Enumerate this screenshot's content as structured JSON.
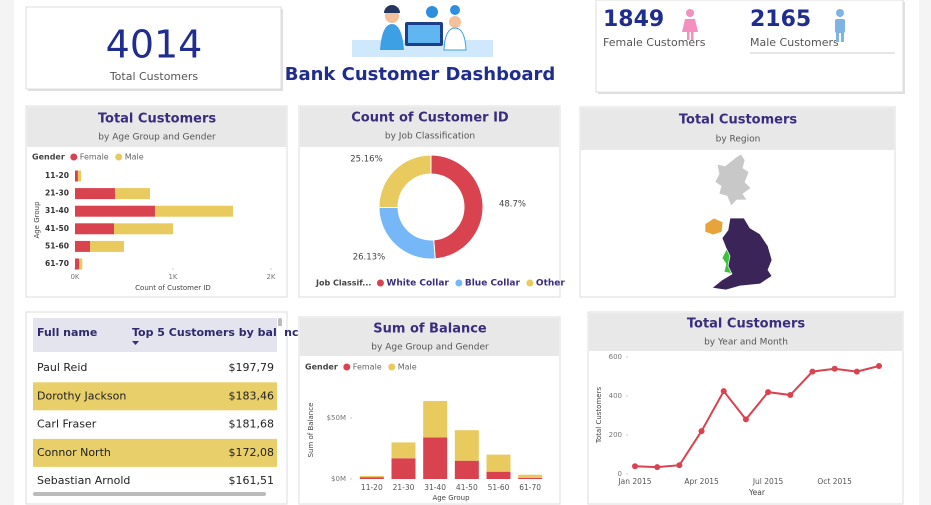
{
  "header": {
    "title": "Bank Customer Dashboard"
  },
  "kpis": {
    "total": {
      "value": 4014,
      "label": "Total Customers"
    },
    "female": {
      "value": 1849,
      "label": "Female Customers"
    },
    "male": {
      "value": 2165,
      "label": "Male Customers"
    }
  },
  "chart_data": [
    {
      "type": "bar",
      "orientation": "horizontal",
      "stacked": true,
      "title": "Total Customers",
      "subtitle": "by Age Group and Gender",
      "legend_title": "Gender",
      "categories": [
        "11-20",
        "21-30",
        "31-40",
        "41-50",
        "51-60",
        "61-70"
      ],
      "series": [
        {
          "name": "Female",
          "color": "#d9434f",
          "values": [
            30,
            408,
            816,
            398,
            153,
            44
          ]
        },
        {
          "name": "Male",
          "color": "#e8ca5f",
          "values": [
            33,
            357,
            796,
            602,
            347,
            30
          ]
        }
      ],
      "xlim": [
        0,
        2000
      ],
      "xticks": [
        {
          "value": 0,
          "label": "0K"
        },
        {
          "value": 1000,
          "label": "1K"
        },
        {
          "value": 2000,
          "label": "2K"
        }
      ],
      "xlabel": "Count of Customer ID",
      "ylabel": "Age Group"
    },
    {
      "type": "pie",
      "donut": true,
      "title": "Count of Customer ID",
      "subtitle": "by Job Classification",
      "legend_title": "Job Classif...",
      "categories": [
        "White Collar",
        "Blue Collar",
        "Other"
      ],
      "values": [
        48.7,
        26.13,
        25.16
      ],
      "value_labels": [
        "48.7%",
        "26.13%",
        "25.16%"
      ],
      "colors": [
        "#d9434f",
        "#75b7f7",
        "#e8ca5f"
      ]
    },
    {
      "type": "bar",
      "orientation": "vertical",
      "stacked": true,
      "title": "Sum of Balance",
      "subtitle": "by Age Group and Gender",
      "legend_title": "Gender",
      "categories": [
        "11-20",
        "21-30",
        "31-40",
        "41-50",
        "51-60",
        "61-70"
      ],
      "series": [
        {
          "name": "Female",
          "color": "#d9434f",
          "values": [
            1.5,
            17,
            34,
            15,
            6,
            1
          ]
        },
        {
          "name": "Male",
          "color": "#e8ca5f",
          "values": [
            1,
            13,
            30,
            25,
            14,
            2.5
          ]
        }
      ],
      "ylim": [
        0,
        70
      ],
      "yticks": [
        {
          "value": 0,
          "label": "$0M"
        },
        {
          "value": 50,
          "label": "$50M"
        }
      ],
      "xlabel": "Age Group",
      "ylabel": "Sum of Balance"
    },
    {
      "type": "line",
      "title": "Total Customers",
      "subtitle": "by Year and Month",
      "categories": [
        "Jan 2015",
        null,
        null,
        "Apr 2015",
        null,
        null,
        "Jul 2015",
        null,
        null,
        "Oct 2015",
        null,
        null
      ],
      "series": [
        {
          "name": "Total Customers",
          "color": "#d9434f",
          "values": [
            40,
            35,
            45,
            220,
            425,
            280,
            420,
            405,
            525,
            540,
            525,
            554
          ]
        }
      ],
      "ylim": [
        0,
        600
      ],
      "yticks": [
        0,
        200,
        400,
        600
      ],
      "xlabel": "Year",
      "ylabel": "Total Customers"
    }
  ],
  "map": {
    "title": "Total Customers",
    "subtitle": "by Region"
  },
  "table": {
    "columns": [
      "Full name",
      "Top 5 Customers by balanc"
    ],
    "rows": [
      [
        "Paul Reid",
        "$197,79"
      ],
      [
        "Dorothy Jackson",
        "$183,46"
      ],
      [
        "Carl Fraser",
        "$181,68"
      ],
      [
        "Connor North",
        "$172,08"
      ],
      [
        "Sebastian Arnold",
        "$161,51"
      ]
    ]
  }
}
